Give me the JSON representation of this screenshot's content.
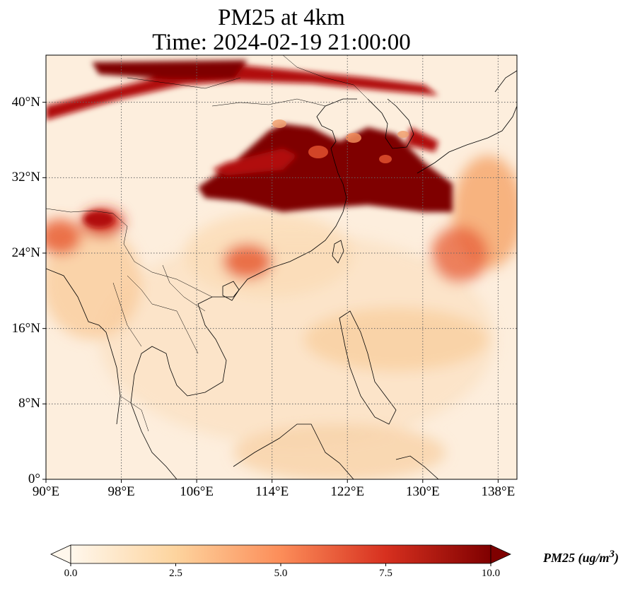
{
  "title": {
    "line1": "PM25 at 4km",
    "line2": "Time: 2024-02-19 21:00:00"
  },
  "map": {
    "extent": {
      "lon": [
        90,
        140
      ],
      "lat": [
        0,
        45
      ]
    },
    "lon_ticks": [
      {
        "value": 90,
        "label": "90°E"
      },
      {
        "value": 98,
        "label": "98°E"
      },
      {
        "value": 106,
        "label": "106°E"
      },
      {
        "value": 114,
        "label": "114°E"
      },
      {
        "value": 122,
        "label": "122°E"
      },
      {
        "value": 130,
        "label": "130°E"
      },
      {
        "value": 138,
        "label": "138°E"
      }
    ],
    "lat_ticks": [
      {
        "value": 0,
        "label": "0°"
      },
      {
        "value": 8,
        "label": "8°N"
      },
      {
        "value": 16,
        "label": "16°N"
      },
      {
        "value": 24,
        "label": "24°N"
      },
      {
        "value": 32,
        "label": "32°N"
      },
      {
        "value": 40,
        "label": "40°N"
      }
    ],
    "gridlines": true,
    "colormap": "OrRd"
  },
  "colorbar": {
    "label_text": "PM25 (ug/m",
    "label_sup": "3",
    "label_close": ")",
    "min": 0.0,
    "max": 10.0,
    "ticks": [
      {
        "value": 0,
        "label": "0.0"
      },
      {
        "value": 2.5,
        "label": "2.5"
      },
      {
        "value": 5,
        "label": "5.0"
      },
      {
        "value": 7.5,
        "label": "7.5"
      },
      {
        "value": 10,
        "label": "10.0"
      }
    ],
    "extend": "both",
    "colors": [
      "#fff7ec",
      "#fdd49e",
      "#fc8d59",
      "#d7301f",
      "#7f0000"
    ]
  }
}
